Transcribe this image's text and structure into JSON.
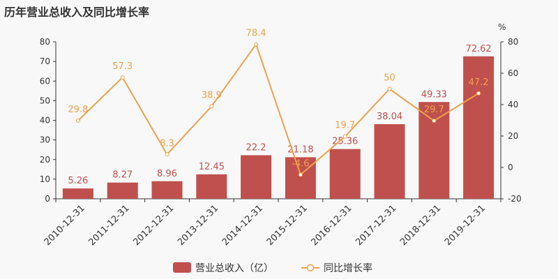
{
  "title": "历年营业总收入及同比增长率",
  "colors": {
    "bar": "#c0504d",
    "line": "#f0a04b",
    "axis": "#333333",
    "grid": "#dddddd"
  },
  "chart_data": {
    "type": "bar",
    "title": "历年营业总收入及同比增长率",
    "categories": [
      "2010-12-31",
      "2011-12-31",
      "2012-12-31",
      "2013-12-31",
      "2014-12-31",
      "2015-12-31",
      "2016-12-31",
      "2017-12-31",
      "2018-12-31",
      "2019-12-31"
    ],
    "series": [
      {
        "name": "营业总收入（亿）",
        "type": "bar",
        "axis": "left",
        "values": [
          5.26,
          8.27,
          8.96,
          12.45,
          22.2,
          21.18,
          25.36,
          38.04,
          49.33,
          72.62
        ]
      },
      {
        "name": "同比增长率",
        "type": "line",
        "axis": "right",
        "values": [
          29.8,
          57.3,
          8.3,
          38.9,
          78.4,
          -4.6,
          19.7,
          50,
          29.7,
          47.2
        ]
      }
    ],
    "y_left": {
      "min": 0,
      "max": 80,
      "ticks": [
        0,
        10,
        20,
        30,
        40,
        50,
        60,
        70,
        80
      ]
    },
    "y_right": {
      "min": -20,
      "max": 80,
      "ticks": [
        -20,
        0,
        20,
        40,
        60,
        80
      ],
      "unit": "%"
    },
    "legend": "bottom"
  }
}
